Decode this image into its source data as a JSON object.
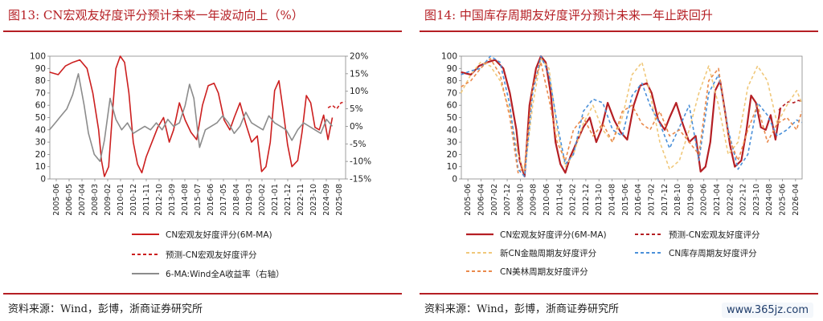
{
  "left": {
    "title": "图13:  CN宏观友好度评分预计未来一年波动向上（%）",
    "source": "资料来源：Wind，彭博，浙商证券研究所",
    "chart_data": {
      "type": "line",
      "categories": [
        "2005-06",
        "2006-05",
        "2007-04",
        "2008-03",
        "2009-02",
        "2010-01",
        "2010-12",
        "2011-11",
        "2012-10",
        "2013-09",
        "2014-08",
        "2015-07",
        "2016-06",
        "2017-05",
        "2018-04",
        "2019-03",
        "2020-02",
        "2021-01",
        "2021-12",
        "2022-11",
        "2023-10",
        "2024-09",
        "2025-08"
      ],
      "x_range": [
        2005.42,
        2025.92
      ],
      "ylim": [
        0,
        100
      ],
      "yticks": [
        0,
        10,
        20,
        30,
        40,
        50,
        60,
        70,
        80,
        90,
        100
      ],
      "y2lim": [
        -15,
        20
      ],
      "y2ticks": [
        "20%",
        "15%",
        "10%",
        "5%",
        "0%",
        "-5%",
        "-10%",
        "-15%"
      ],
      "y2tick_values": [
        20,
        15,
        10,
        5,
        0,
        -5,
        -10,
        -15
      ],
      "series": [
        {
          "name": "CN宏观友好度评分(6M-MA)",
          "color": "#cc1f1f",
          "style": "solid",
          "axis": "left",
          "x": [
            2005.4,
            2006.0,
            2006.5,
            2007.0,
            2007.5,
            2008.0,
            2008.4,
            2008.8,
            2009.0,
            2009.2,
            2009.5,
            2009.8,
            2010.0,
            2010.3,
            2010.6,
            2010.9,
            2011.2,
            2011.5,
            2011.8,
            2012.1,
            2012.5,
            2012.9,
            2013.3,
            2013.7,
            2014.0,
            2014.4,
            2014.8,
            2015.2,
            2015.6,
            2016.0,
            2016.4,
            2016.8,
            2017.1,
            2017.5,
            2017.9,
            2018.2,
            2018.6,
            2019.0,
            2019.4,
            2019.8,
            2020.1,
            2020.4,
            2020.7,
            2021.0,
            2021.3,
            2021.6,
            2021.9,
            2022.2,
            2022.6,
            2022.9,
            2023.2,
            2023.5,
            2023.8,
            2024.1,
            2024.4,
            2024.7,
            2025.0
          ],
          "y": [
            87,
            85,
            92,
            95,
            97,
            90,
            70,
            40,
            15,
            2,
            10,
            60,
            90,
            100,
            95,
            70,
            30,
            12,
            5,
            18,
            30,
            42,
            50,
            30,
            40,
            62,
            48,
            38,
            32,
            60,
            76,
            78,
            70,
            48,
            40,
            50,
            62,
            45,
            30,
            35,
            6,
            10,
            30,
            72,
            80,
            55,
            28,
            10,
            15,
            38,
            68,
            62,
            42,
            40,
            52,
            32,
            50
          ]
        },
        {
          "name": "预测-CN宏观友好度评分",
          "color": "#cc1f1f",
          "style": "dashed",
          "axis": "left",
          "x": [
            2024.7,
            2025.0,
            2025.3,
            2025.6,
            2025.9
          ],
          "y": [
            58,
            60,
            57,
            62,
            63
          ]
        },
        {
          "name": "6-MA:Wind全A收益率（右轴）",
          "color": "#8c8c8c",
          "style": "solid",
          "axis": "right",
          "x": [
            2005.4,
            2005.8,
            2006.2,
            2006.6,
            2007.0,
            2007.4,
            2007.8,
            2008.1,
            2008.5,
            2008.9,
            2009.2,
            2009.6,
            2010.0,
            2010.4,
            2010.8,
            2011.2,
            2011.6,
            2012.0,
            2012.4,
            2012.8,
            2013.2,
            2013.6,
            2014.0,
            2014.4,
            2014.8,
            2015.1,
            2015.4,
            2015.8,
            2016.2,
            2016.6,
            2017.0,
            2017.4,
            2017.8,
            2018.2,
            2018.6,
            2019.0,
            2019.4,
            2019.8,
            2020.2,
            2020.6,
            2021.0,
            2021.4,
            2021.8,
            2022.2,
            2022.6,
            2023.0,
            2023.4,
            2023.8,
            2024.2,
            2024.6,
            2025.0
          ],
          "y": [
            -1,
            1,
            3,
            5,
            9,
            15,
            6,
            -2,
            -8,
            -10,
            -4,
            8,
            2,
            -1,
            1,
            -2,
            -1,
            0,
            -1,
            1,
            -1,
            2,
            0,
            1,
            6,
            12,
            8,
            -6,
            -1,
            0,
            1,
            3,
            1,
            -2,
            0,
            4,
            1,
            0,
            -1,
            3,
            1,
            0,
            -1,
            -4,
            -1,
            1,
            0,
            -1,
            -2,
            2,
            0
          ]
        }
      ],
      "legend_position": "bottom"
    }
  },
  "right": {
    "title": "图14:  中国库存周期友好度评分预计未来一年止跌回升",
    "source": "资料来源：Wind，彭博，浙商证券研究所",
    "watermark": "www.365jz.com",
    "chart_data": {
      "type": "line",
      "categories": [
        "2005-06",
        "2006-04",
        "2007-02",
        "2007-12",
        "2008-10",
        "2009-08",
        "2010-06",
        "2011-04",
        "2012-02",
        "2012-12",
        "2013-10",
        "2014-08",
        "2015-06",
        "2016-04",
        "2017-02",
        "2017-12",
        "2018-10",
        "2019-08",
        "2020-06",
        "2021-04",
        "2022-02",
        "2022-12",
        "2023-10",
        "2024-08",
        "2025-06",
        "2026-04"
      ],
      "x_range": [
        2005.42,
        2026.33
      ],
      "ylim": [
        0,
        100
      ],
      "yticks": [
        0,
        10,
        20,
        30,
        40,
        50,
        60,
        70,
        80,
        90,
        100
      ],
      "series": [
        {
          "name": "CN宏观友好度评分(6M-MA)",
          "color": "#b51f24",
          "style": "solid-thick",
          "x": [
            2005.4,
            2006.0,
            2006.5,
            2007.0,
            2007.5,
            2008.0,
            2008.4,
            2008.8,
            2009.0,
            2009.3,
            2009.6,
            2010.0,
            2010.3,
            2010.6,
            2010.9,
            2011.2,
            2011.5,
            2011.8,
            2012.1,
            2012.5,
            2012.9,
            2013.3,
            2013.7,
            2014.0,
            2014.4,
            2014.8,
            2015.2,
            2015.6,
            2016.0,
            2016.4,
            2016.8,
            2017.1,
            2017.5,
            2017.9,
            2018.2,
            2018.6,
            2019.0,
            2019.4,
            2019.8,
            2020.1,
            2020.4,
            2020.7,
            2021.0,
            2021.3,
            2021.6,
            2021.9,
            2022.2,
            2022.6,
            2022.9,
            2023.2,
            2023.5,
            2023.8,
            2024.1,
            2024.4,
            2024.7,
            2025.0
          ],
          "y": [
            87,
            85,
            92,
            95,
            97,
            90,
            70,
            40,
            15,
            2,
            60,
            90,
            100,
            95,
            70,
            30,
            12,
            5,
            18,
            30,
            42,
            50,
            30,
            40,
            62,
            48,
            38,
            32,
            60,
            76,
            78,
            70,
            48,
            40,
            50,
            62,
            45,
            30,
            35,
            6,
            10,
            30,
            72,
            80,
            55,
            28,
            10,
            15,
            38,
            68,
            62,
            42,
            40,
            52,
            32,
            58
          ]
        },
        {
          "name": "预测-CN宏观友好度评分",
          "color": "#b51f24",
          "style": "dashed",
          "x": [
            2024.9,
            2025.2,
            2025.5,
            2025.8,
            2026.1,
            2026.3
          ],
          "y": [
            56,
            60,
            63,
            62,
            64,
            63
          ]
        },
        {
          "name": "新CN金融周期友好度评分",
          "color": "#f0c87a",
          "style": "dashed",
          "x": [
            2005.4,
            2006.0,
            2006.6,
            2007.2,
            2007.8,
            2008.4,
            2008.9,
            2009.3,
            2009.8,
            2010.3,
            2010.8,
            2011.3,
            2011.8,
            2012.3,
            2012.9,
            2013.5,
            2014.1,
            2014.7,
            2015.3,
            2015.9,
            2016.5,
            2017.0,
            2017.6,
            2018.2,
            2018.8,
            2019.4,
            2020.0,
            2020.6,
            2021.2,
            2021.8,
            2022.4,
            2023.0,
            2023.6,
            2024.2,
            2024.8,
            2025.4,
            2026.0,
            2026.3
          ],
          "y": [
            70,
            85,
            95,
            92,
            80,
            55,
            20,
            5,
            60,
            98,
            90,
            40,
            10,
            20,
            45,
            60,
            40,
            30,
            50,
            85,
            95,
            70,
            30,
            8,
            15,
            40,
            70,
            92,
            60,
            20,
            30,
            75,
            92,
            80,
            45,
            60,
            72,
            62
          ]
        },
        {
          "name": "CN库存周期友好度评分",
          "color": "#4a90d9",
          "style": "dashed",
          "x": [
            2005.4,
            2006.0,
            2006.6,
            2007.2,
            2007.8,
            2008.4,
            2008.9,
            2009.3,
            2009.8,
            2010.3,
            2010.8,
            2011.3,
            2011.8,
            2012.3,
            2012.9,
            2013.5,
            2014.1,
            2014.7,
            2015.3,
            2015.9,
            2016.5,
            2017.0,
            2017.6,
            2018.2,
            2018.8,
            2019.4,
            2020.0,
            2020.6,
            2021.2,
            2021.8,
            2022.4,
            2023.0,
            2023.6,
            2024.2,
            2024.8,
            2025.4,
            2026.0,
            2026.3
          ],
          "y": [
            85,
            88,
            90,
            100,
            95,
            60,
            8,
            2,
            70,
            100,
            85,
            45,
            12,
            20,
            55,
            65,
            62,
            40,
            35,
            68,
            78,
            60,
            45,
            25,
            42,
            60,
            15,
            70,
            85,
            40,
            8,
            20,
            62,
            52,
            35,
            40,
            48,
            46
          ]
        },
        {
          "name": "CN美林周期友好度评分",
          "color": "#ea8a4c",
          "style": "dashed",
          "x": [
            2005.4,
            2006.0,
            2006.6,
            2007.2,
            2007.8,
            2008.4,
            2008.9,
            2009.3,
            2009.8,
            2010.3,
            2010.8,
            2011.3,
            2011.8,
            2012.3,
            2012.9,
            2013.5,
            2014.1,
            2014.7,
            2015.3,
            2015.9,
            2016.5,
            2017.0,
            2017.6,
            2018.2,
            2018.8,
            2019.4,
            2020.0,
            2020.6,
            2021.2,
            2021.8,
            2022.4,
            2023.0,
            2023.6,
            2024.2,
            2024.8,
            2025.4,
            2026.0,
            2026.3
          ],
          "y": [
            75,
            80,
            90,
            98,
            85,
            50,
            5,
            10,
            75,
            95,
            65,
            30,
            15,
            40,
            50,
            35,
            45,
            30,
            55,
            60,
            45,
            40,
            55,
            35,
            40,
            30,
            20,
            80,
            90,
            35,
            15,
            40,
            60,
            30,
            45,
            50,
            40,
            55
          ]
        }
      ],
      "legend_position": "bottom"
    }
  }
}
